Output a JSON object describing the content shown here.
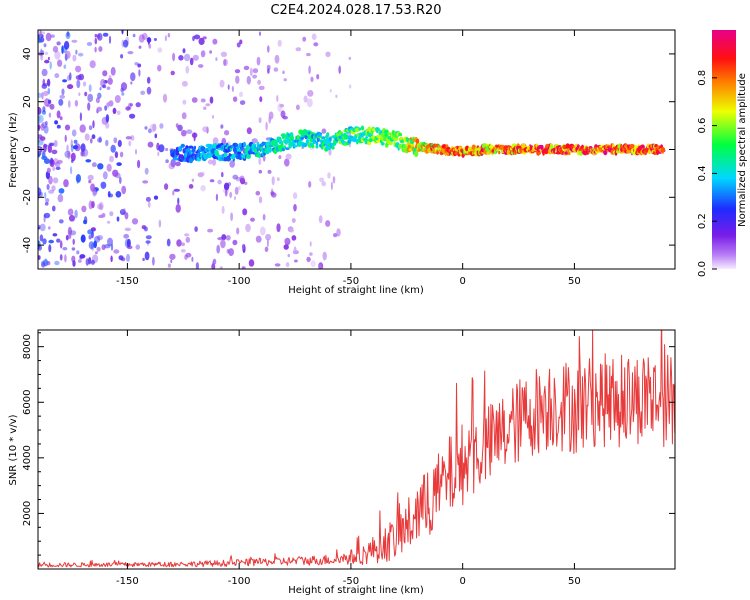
{
  "chart_data": [
    {
      "type": "heatmap",
      "title": "C2E4.2024.028.17.53.R20",
      "xlabel": "Height of straight line (km)",
      "ylabel": "Frequency (Hz)",
      "xlim": [
        -190,
        95
      ],
      "ylim": [
        -50,
        50
      ],
      "xticks": [
        -150,
        -100,
        -50,
        0,
        50
      ],
      "yticks": [
        -40,
        -20,
        0,
        20,
        40
      ],
      "colorbar": {
        "label": "Normalized spectral amplitude",
        "range": [
          0,
          1
        ],
        "ticks": [
          0.0,
          0.2,
          0.4,
          0.6,
          0.8
        ],
        "tick_labels": [
          "0.0",
          "0.2",
          "0.4",
          "0.6",
          "0.8"
        ],
        "colormap": [
          "#f0e0ff",
          "#8a2be2",
          "#1e2bff",
          "#00d8ff",
          "#00ff40",
          "#eeff00",
          "#ff8000",
          "#ff1010",
          "#e8008a"
        ]
      },
      "ridge": {
        "x": [
          -130,
          -120,
          -110,
          -100,
          -90,
          -80,
          -70,
          -60,
          -50,
          -40,
          -30,
          -20,
          -10,
          0,
          10,
          20,
          30,
          40,
          50,
          60,
          70,
          80,
          90
        ],
        "frequency": [
          -1,
          -2,
          -1,
          -1,
          0,
          3,
          5,
          3,
          6,
          6,
          4,
          1,
          0,
          -1,
          0,
          0,
          0,
          0,
          0,
          0,
          0,
          0,
          0
        ],
        "amplitude": [
          0.3,
          0.35,
          0.4,
          0.4,
          0.45,
          0.5,
          0.5,
          0.5,
          0.55,
          0.6,
          0.6,
          0.75,
          0.85,
          0.85,
          0.9,
          0.9,
          0.9,
          0.95,
          0.95,
          0.95,
          0.95,
          0.95,
          0.95
        ]
      },
      "noise_region": {
        "x_from": -190,
        "x_to": -50,
        "amplitude": 0.15
      }
    },
    {
      "type": "line",
      "xlabel": "Height of straight line (km)",
      "ylabel": "SNR (10 * v/v)",
      "xlim": [
        -190,
        95
      ],
      "ylim": [
        0,
        8600
      ],
      "xticks": [
        -150,
        -100,
        -50,
        0,
        50
      ],
      "yticks": [
        2000,
        4000,
        6000,
        8000
      ],
      "series": [
        {
          "name": "SNR",
          "color": "#e83a3a",
          "x": [
            -190,
            -170,
            -150,
            -130,
            -110,
            -90,
            -70,
            -55,
            -45,
            -40,
            -35,
            -30,
            -25,
            -20,
            -15,
            -10,
            -5,
            0,
            5,
            8,
            11,
            14,
            20,
            30,
            40,
            50,
            60,
            70,
            80,
            90,
            95
          ],
          "mean": [
            150,
            150,
            160,
            170,
            200,
            250,
            300,
            350,
            500,
            700,
            900,
            1100,
            1500,
            2000,
            2400,
            2900,
            3400,
            3800,
            4100,
            4300,
            4400,
            4600,
            5000,
            5600,
            6000,
            5800,
            6100,
            6000,
            6200,
            6100,
            6000
          ],
          "spread": [
            80,
            80,
            80,
            90,
            110,
            140,
            170,
            200,
            350,
            500,
            650,
            800,
            1000,
            1200,
            1300,
            1400,
            1500,
            1500,
            1500,
            1500,
            1500,
            1500,
            1500,
            1600,
            1700,
            1700,
            1700,
            1700,
            1700,
            1700,
            1700
          ]
        }
      ]
    }
  ]
}
